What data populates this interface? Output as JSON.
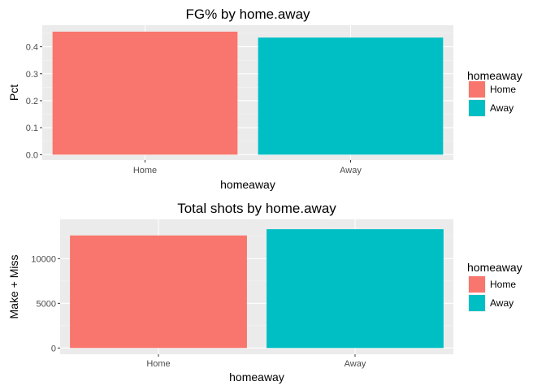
{
  "chart_data": [
    {
      "type": "bar",
      "title": "FG% by home.away",
      "xlabel": "homeaway",
      "ylabel": "Pct",
      "categories": [
        "Home",
        "Away"
      ],
      "values": [
        0.456,
        0.434
      ],
      "colors": [
        "#F8766D",
        "#00BFC4"
      ],
      "ylim": [
        -0.02,
        0.48
      ],
      "yticks": [
        0.0,
        0.1,
        0.2,
        0.3,
        0.4
      ],
      "ytick_labels": [
        "0.0",
        "0.1",
        "0.2",
        "0.3",
        "0.4"
      ],
      "grid": true,
      "legend": {
        "title": "homeaway",
        "entries": [
          "Home",
          "Away"
        ],
        "colors": [
          "#F8766D",
          "#00BFC4"
        ],
        "placement": "right"
      }
    },
    {
      "type": "bar",
      "title": "Total shots by home.away",
      "xlabel": "homeaway",
      "ylabel": "Make + Miss",
      "categories": [
        "Home",
        "Away"
      ],
      "values": [
        12600,
        13300
      ],
      "colors": [
        "#F8766D",
        "#00BFC4"
      ],
      "ylim": [
        -700,
        14400
      ],
      "yticks": [
        0,
        5000,
        10000
      ],
      "ytick_labels": [
        "0",
        "5000",
        "10000"
      ],
      "grid": true,
      "legend": {
        "title": "homeaway",
        "entries": [
          "Home",
          "Away"
        ],
        "colors": [
          "#F8766D",
          "#00BFC4"
        ],
        "placement": "right"
      }
    }
  ],
  "style": {
    "panel_background": "#EBEBEB",
    "grid_major": "#FFFFFF",
    "grid_minor": "#F5F5F5",
    "tick_color": "#333333"
  }
}
